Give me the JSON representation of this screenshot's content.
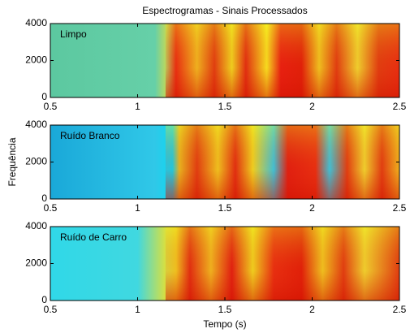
{
  "chart_data": [
    {
      "type": "spectrogram",
      "title": "Espectrogramas - Sinais Processados",
      "annotation": "Limpo",
      "xlim": [
        0.5,
        2.5
      ],
      "xticks": [
        0.5,
        1,
        1.5,
        2,
        2.5
      ],
      "ylim": [
        0,
        4000
      ],
      "yticks": [
        0,
        2000,
        4000
      ]
    },
    {
      "type": "spectrogram",
      "ylabel": "Frequência",
      "annotation": "Ruído Branco",
      "xlim": [
        0.5,
        2.5
      ],
      "xticks": [
        0.5,
        1,
        1.5,
        2,
        2.5
      ],
      "ylim": [
        0,
        4000
      ],
      "yticks": [
        0,
        2000,
        4000
      ]
    },
    {
      "type": "spectrogram",
      "xlabel": "Tempo (s)",
      "annotation": "Ruído de Carro",
      "xlim": [
        0.5,
        2.5
      ],
      "xticks": [
        0.5,
        1,
        1.5,
        2,
        2.5
      ],
      "ylim": [
        0,
        4000
      ],
      "yticks": [
        0,
        2000,
        4000
      ]
    }
  ]
}
